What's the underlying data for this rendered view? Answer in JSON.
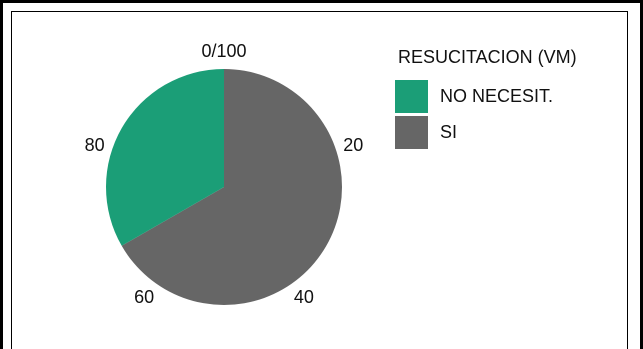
{
  "chart_data": {
    "type": "pie",
    "title": "",
    "legend": {
      "title": "RESUCITACION (VM)",
      "placement": "top-right"
    },
    "tick_labels": [
      "0/100",
      "20",
      "40",
      "60",
      "80"
    ],
    "series": [
      {
        "name": "NO NECESIT.",
        "value": 33.3,
        "color": "#1b9e77"
      },
      {
        "name": "SI",
        "value": 66.7,
        "color": "#666666"
      }
    ]
  }
}
